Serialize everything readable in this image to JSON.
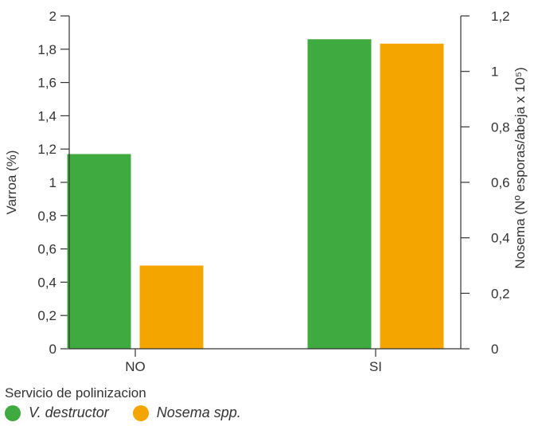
{
  "chart_data": {
    "type": "bar",
    "categories": [
      "NO",
      "SI"
    ],
    "series": [
      {
        "name": "V. destructor",
        "axis": "left",
        "color": "#3faa3f",
        "values": [
          1.17,
          1.86
        ]
      },
      {
        "name": "Nosema spp.",
        "axis": "right",
        "color": "#f5a500",
        "values": [
          0.3,
          1.1
        ]
      }
    ],
    "xlabel": "Servicio de polinizacion",
    "ylabel": "Varroa (%)",
    "y2label": "Nosema (Nº esporas/abeja x 10⁵)",
    "ylim": [
      0,
      2
    ],
    "y2lim": [
      0,
      1.2
    ],
    "yticks": [
      "0",
      "0,2",
      "0,4",
      "0,6",
      "0,8",
      "1",
      "1,2",
      "1,4",
      "1,6",
      "1,8",
      "2"
    ],
    "y2ticks": [
      "0",
      "0,2",
      "0,4",
      "0,6",
      "0,8",
      "1",
      "1,2"
    ],
    "legend_position": "bottom-left",
    "grid": false
  }
}
